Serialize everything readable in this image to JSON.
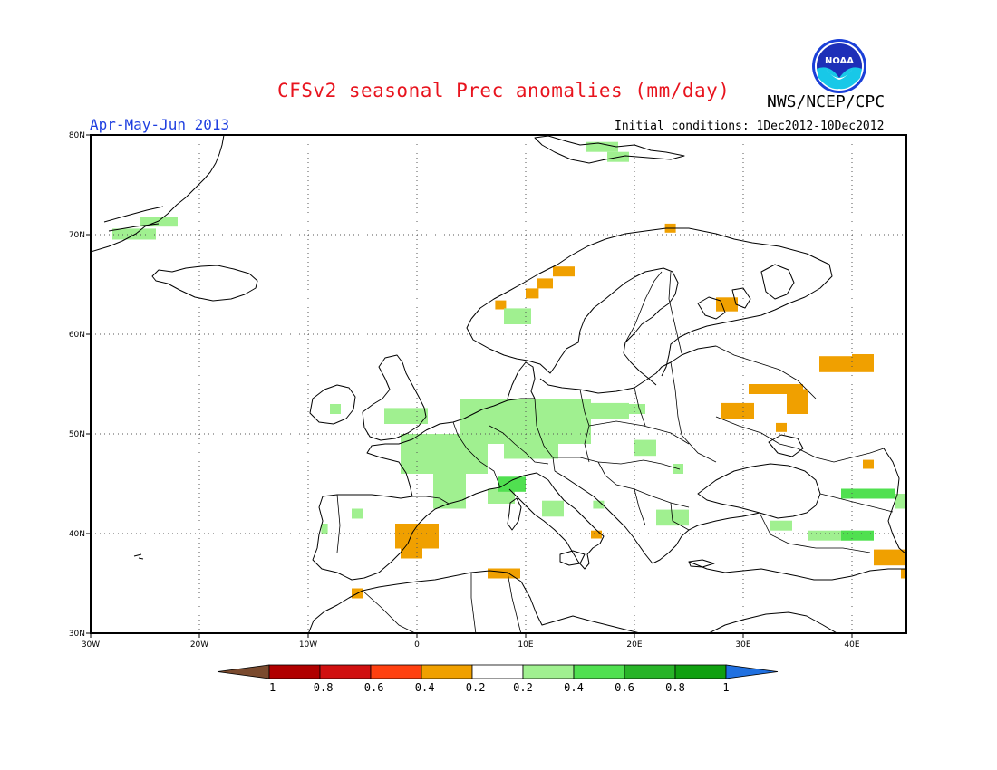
{
  "title": "CFSv2 seasonal Prec anomalies (mm/day)",
  "agency": "NWS/NCEP/CPC",
  "logo_text": "NOAA",
  "period": "Apr-May-Jun 2013",
  "initial_conditions": "Initial conditions: 1Dec2012-10Dec2012",
  "colors": {
    "title": "#e8141e",
    "period": "#1f3fe0",
    "dry": "#f0a000",
    "wet_light": "#a0f090",
    "wet_mid": "#50e050"
  },
  "map": {
    "lon_range": [
      -30,
      45
    ],
    "lat_range": [
      30,
      80
    ],
    "lat_ticks": [
      {
        "value": 80,
        "label": "80N"
      },
      {
        "value": 70,
        "label": "70N"
      },
      {
        "value": 60,
        "label": "60N"
      },
      {
        "value": 50,
        "label": "50N"
      },
      {
        "value": 40,
        "label": "40N"
      },
      {
        "value": 30,
        "label": "30N"
      }
    ],
    "lon_ticks": [
      {
        "value": -30,
        "label": "30W"
      },
      {
        "value": -20,
        "label": "20W"
      },
      {
        "value": -10,
        "label": "10W"
      },
      {
        "value": 0,
        "label": "0"
      },
      {
        "value": 10,
        "label": "10E"
      },
      {
        "value": 20,
        "label": "20E"
      },
      {
        "value": 30,
        "label": "30E"
      },
      {
        "value": 40,
        "label": "40E"
      }
    ],
    "grid_lines": true,
    "anomaly_cells": [
      {
        "lon": -28,
        "lat": 69.5,
        "w": 4,
        "h": 1.1,
        "cls": "wet_light"
      },
      {
        "lon": -25.5,
        "lat": 70.8,
        "w": 3.5,
        "h": 1.0,
        "cls": "wet_light"
      },
      {
        "lon": 15.5,
        "lat": 78.3,
        "w": 3,
        "h": 1.0,
        "cls": "wet_light"
      },
      {
        "lon": 17.5,
        "lat": 77.3,
        "w": 2,
        "h": 1.0,
        "cls": "wet_light"
      },
      {
        "lon": 22.8,
        "lat": 70.2,
        "w": 1,
        "h": 0.9,
        "cls": "dry"
      },
      {
        "lon": 12.5,
        "lat": 65.8,
        "w": 2,
        "h": 1.0,
        "cls": "dry"
      },
      {
        "lon": 11.0,
        "lat": 64.6,
        "w": 1.5,
        "h": 1.0,
        "cls": "dry"
      },
      {
        "lon": 10.0,
        "lat": 63.6,
        "w": 1.2,
        "h": 1.0,
        "cls": "dry"
      },
      {
        "lon": 7.2,
        "lat": 62.5,
        "w": 1.0,
        "h": 0.9,
        "cls": "dry"
      },
      {
        "lon": 8.0,
        "lat": 61.0,
        "w": 2.5,
        "h": 1.6,
        "cls": "wet_light"
      },
      {
        "lon": 27.5,
        "lat": 62.3,
        "w": 2,
        "h": 1.4,
        "cls": "dry"
      },
      {
        "lon": 37.0,
        "lat": 56.2,
        "w": 5,
        "h": 1.6,
        "cls": "dry"
      },
      {
        "lon": 40.0,
        "lat": 57.0,
        "w": 2,
        "h": 1.0,
        "cls": "dry"
      },
      {
        "lon": 30.5,
        "lat": 54.0,
        "w": 5,
        "h": 1.0,
        "cls": "dry"
      },
      {
        "lon": 28.0,
        "lat": 51.5,
        "w": 3,
        "h": 1.6,
        "cls": "dry"
      },
      {
        "lon": 34.0,
        "lat": 52.0,
        "w": 2,
        "h": 2.5,
        "cls": "dry"
      },
      {
        "lon": 33.0,
        "lat": 50.2,
        "w": 1,
        "h": 0.9,
        "cls": "dry"
      },
      {
        "lon": 41.0,
        "lat": 46.5,
        "w": 1,
        "h": 0.9,
        "cls": "dry"
      },
      {
        "lon": 4.0,
        "lat": 49.0,
        "w": 12,
        "h": 4.5,
        "cls": "wet_light"
      },
      {
        "lon": -1.5,
        "lat": 46.0,
        "w": 8,
        "h": 4.0,
        "cls": "wet_light"
      },
      {
        "lon": 1.5,
        "lat": 42.5,
        "w": 3,
        "h": 4.0,
        "cls": "wet_light"
      },
      {
        "lon": 8.0,
        "lat": 47.5,
        "w": 5,
        "h": 3.5,
        "cls": "wet_light"
      },
      {
        "lon": 6.5,
        "lat": 43.0,
        "w": 2.5,
        "h": 1.5,
        "cls": "wet_light"
      },
      {
        "lon": 7.5,
        "lat": 44.2,
        "w": 2.5,
        "h": 1.5,
        "cls": "wet_mid"
      },
      {
        "lon": 16.0,
        "lat": 51.5,
        "w": 3.5,
        "h": 1.6,
        "cls": "wet_light"
      },
      {
        "lon": 19.0,
        "lat": 52.0,
        "w": 2,
        "h": 1.0,
        "cls": "wet_light"
      },
      {
        "lon": -3.0,
        "lat": 51.0,
        "w": 4,
        "h": 1.6,
        "cls": "wet_light"
      },
      {
        "lon": -8.0,
        "lat": 52.0,
        "w": 1,
        "h": 1.0,
        "cls": "wet_light"
      },
      {
        "lon": 20.0,
        "lat": 47.8,
        "w": 2,
        "h": 1.6,
        "cls": "wet_light"
      },
      {
        "lon": 23.5,
        "lat": 46.0,
        "w": 1,
        "h": 1.0,
        "cls": "wet_light"
      },
      {
        "lon": 11.5,
        "lat": 41.7,
        "w": 2,
        "h": 1.6,
        "cls": "wet_light"
      },
      {
        "lon": 16.2,
        "lat": 42.5,
        "w": 1,
        "h": 0.8,
        "cls": "wet_light"
      },
      {
        "lon": 22.0,
        "lat": 40.8,
        "w": 3,
        "h": 1.6,
        "cls": "wet_light"
      },
      {
        "lon": -6.0,
        "lat": 41.5,
        "w": 1,
        "h": 1.0,
        "cls": "wet_light"
      },
      {
        "lon": -8.8,
        "lat": 40.0,
        "w": 0.6,
        "h": 1.0,
        "cls": "wet_light"
      },
      {
        "lon": 39.0,
        "lat": 43.5,
        "w": 5,
        "h": 1.0,
        "cls": "wet_mid"
      },
      {
        "lon": 44.0,
        "lat": 42.5,
        "w": 1,
        "h": 1.5,
        "cls": "wet_light"
      },
      {
        "lon": 32.5,
        "lat": 40.3,
        "w": 2,
        "h": 1.0,
        "cls": "wet_light"
      },
      {
        "lon": 36.0,
        "lat": 39.3,
        "w": 4,
        "h": 1.0,
        "cls": "wet_light"
      },
      {
        "lon": 39.0,
        "lat": 39.3,
        "w": 3,
        "h": 1.0,
        "cls": "wet_mid"
      },
      {
        "lon": -2.0,
        "lat": 38.5,
        "w": 4,
        "h": 2.5,
        "cls": "dry"
      },
      {
        "lon": -1.5,
        "lat": 37.5,
        "w": 2,
        "h": 1.0,
        "cls": "dry"
      },
      {
        "lon": 1.0,
        "lat": 40.3,
        "w": 1,
        "h": 0.7,
        "cls": "dry"
      },
      {
        "lon": 16.0,
        "lat": 39.5,
        "w": 1,
        "h": 0.8,
        "cls": "dry"
      },
      {
        "lon": 6.5,
        "lat": 35.5,
        "w": 3,
        "h": 1.0,
        "cls": "dry"
      },
      {
        "lon": -6.0,
        "lat": 33.5,
        "w": 1,
        "h": 1.0,
        "cls": "dry"
      },
      {
        "lon": 42.0,
        "lat": 36.8,
        "w": 3,
        "h": 1.6,
        "cls": "dry"
      },
      {
        "lon": 44.5,
        "lat": 35.5,
        "w": 0.5,
        "h": 1.0,
        "cls": "dry"
      }
    ]
  },
  "colorbar": {
    "colors": [
      "#7a4a2e",
      "#b00000",
      "#d01010",
      "#ff4010",
      "#f0a000",
      "#ffffff",
      "#a0f090",
      "#50e050",
      "#28b428",
      "#10a010",
      "#2070e0"
    ],
    "labels": [
      "-1",
      "-0.8",
      "-0.6",
      "-0.4",
      "-0.2",
      "0.2",
      "0.4",
      "0.6",
      "0.8",
      "1"
    ]
  }
}
